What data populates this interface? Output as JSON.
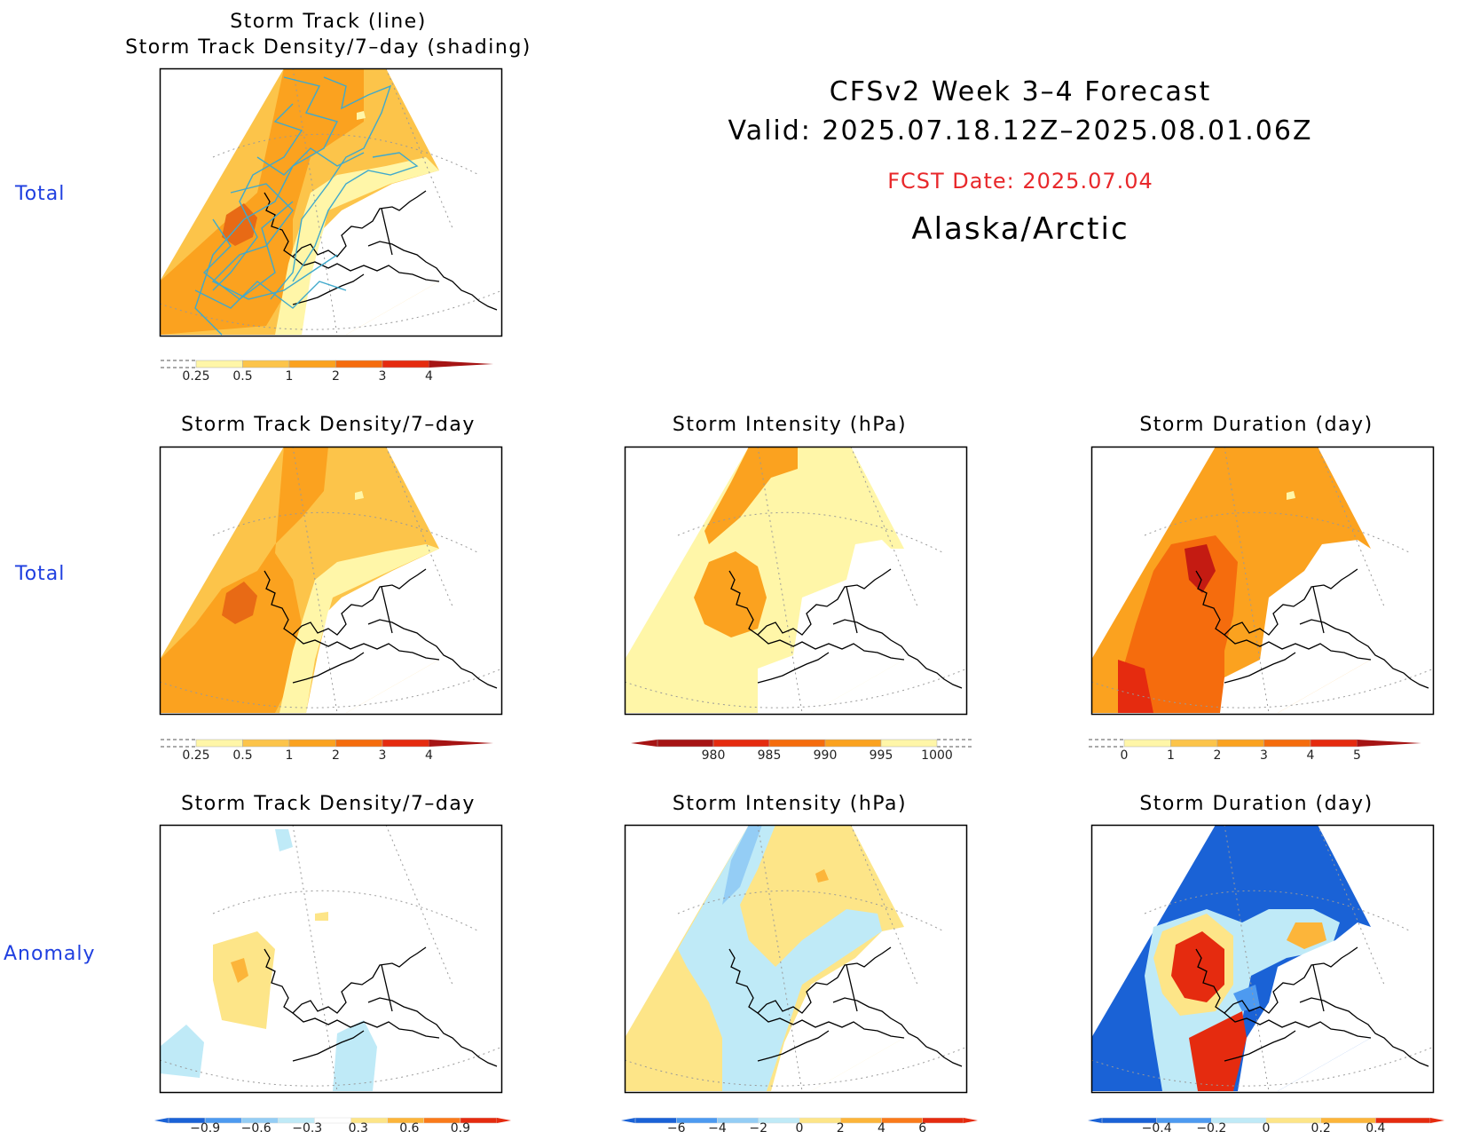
{
  "header": {
    "line1": "CFSv2 Week 3–4 Forecast",
    "line2": "Valid: 2025.07.18.12Z–2025.08.01.06Z",
    "fcst": "FCST Date: 2025.07.04",
    "region": "Alaska/Arctic",
    "fcst_color": "#e8282b"
  },
  "row_labels": [
    "Total",
    "Total",
    "Anomaly"
  ],
  "panels": [
    {
      "title1": "Storm Track (line)",
      "title2": "Storm Track Density/7–day (shading)"
    },
    {
      "title1": "Storm Track Density/7–day"
    },
    {
      "title1": "Storm Intensity (hPa)"
    },
    {
      "title1": "Storm Duration (day)"
    },
    {
      "title1": "Storm Track Density/7–day"
    },
    {
      "title1": "Storm Intensity (hPa)"
    },
    {
      "title1": "Storm Duration (day)"
    }
  ],
  "colorbars": [
    {
      "ticks": [
        "0.25",
        "0.5",
        "1",
        "2",
        "3",
        "4"
      ],
      "colors": [
        "#fff6a8",
        "#fcc44a",
        "#fba21f",
        "#f56c0d",
        "#e52b0f",
        "#a61414"
      ],
      "style": "total-right"
    },
    {
      "ticks": [
        "0.25",
        "0.5",
        "1",
        "2",
        "3",
        "4"
      ],
      "colors": [
        "#fff6a8",
        "#fcc44a",
        "#fba21f",
        "#f56c0d",
        "#e52b0f",
        "#a61414"
      ],
      "style": "total-right"
    },
    {
      "ticks": [
        "980",
        "985",
        "990",
        "995",
        "1000"
      ],
      "colors": [
        "#a61414",
        "#e52b0f",
        "#f56c0d",
        "#fba21f",
        "#fff6a8"
      ],
      "style": "total-left"
    },
    {
      "ticks": [
        "0",
        "1",
        "2",
        "3",
        "4",
        "5"
      ],
      "colors": [
        "#fff6a8",
        "#fcc44a",
        "#fba21f",
        "#f56c0d",
        "#e52b0f",
        "#a61414"
      ],
      "style": "total-right"
    },
    {
      "ticks": [
        "−0.9",
        "−0.6",
        "−0.3",
        "0.3",
        "0.6",
        "0.9"
      ],
      "colors": [
        "#1a62d6",
        "#4d9af0",
        "#94cdf5",
        "#bfeaf7",
        "#ffffff",
        "#fde588",
        "#fcb53a",
        "#fa7a1a",
        "#e52b0f"
      ],
      "style": "anom"
    },
    {
      "ticks": [
        "−6",
        "−4",
        "−2",
        "0",
        "2",
        "4",
        "6"
      ],
      "colors": [
        "#1a62d6",
        "#4d9af0",
        "#94cdf5",
        "#bfeaf7",
        "#fde588",
        "#fcb53a",
        "#fa7a1a",
        "#e52b0f"
      ],
      "style": "anom"
    },
    {
      "ticks": [
        "−0.4",
        "−0.2",
        "0",
        "0.2",
        "0.4"
      ],
      "colors": [
        "#1a62d6",
        "#4d9af0",
        "#bfeaf7",
        "#fde588",
        "#fcb53a",
        "#e52b0f"
      ],
      "style": "anom"
    }
  ]
}
